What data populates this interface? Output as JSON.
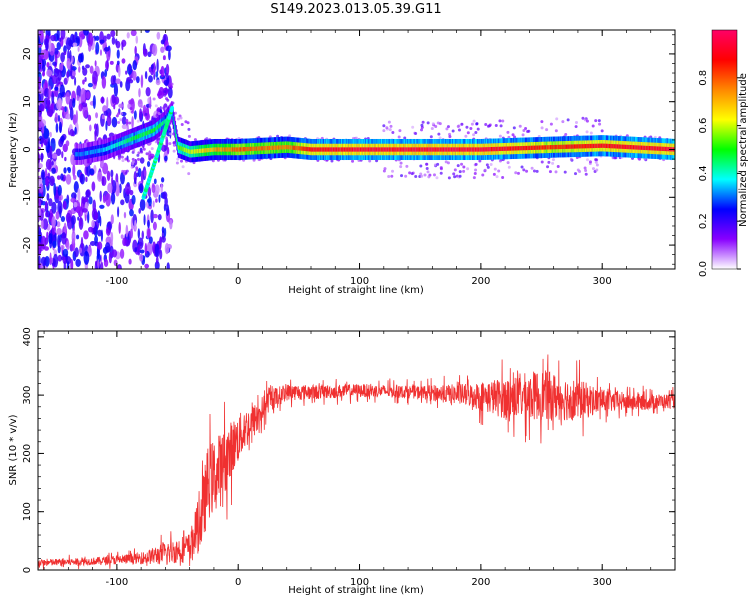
{
  "title": "S149.2023.013.05.39.G11",
  "chart_data": [
    {
      "type": "heatmap",
      "xlabel": "Height of straight line (km)",
      "ylabel": "Frequency (Hz)",
      "xlim": [
        -165,
        360
      ],
      "ylim": [
        -25,
        25
      ],
      "xticks": [
        -100,
        0,
        100,
        200,
        300
      ],
      "yticks": [
        -20,
        -10,
        0,
        10,
        20
      ],
      "grid": false,
      "colorbar": {
        "label": "Normalized spectral amplitude",
        "range": [
          0,
          1
        ],
        "ticks": [
          "0.0",
          "0.2",
          "0.4",
          "0.6",
          "0.8"
        ],
        "colors": [
          "#ffffff",
          "#8800ff",
          "#0000ff",
          "#00ffff",
          "#00ff00",
          "#ffff00",
          "#ff8800",
          "#ff0000",
          "#ff0066"
        ]
      },
      "ridge": {
        "x": [
          -130,
          -110,
          -90,
          -70,
          -60,
          -55,
          -50,
          -40,
          -20,
          0,
          40,
          60,
          100,
          200,
          260,
          300,
          360
        ],
        "y": [
          -1,
          0,
          2,
          4,
          6,
          8,
          0.5,
          -0.5,
          0,
          0,
          0.5,
          0,
          0,
          0,
          0.5,
          0.8,
          0
        ],
        "amplitude": [
          0.3,
          0.35,
          0.45,
          0.5,
          0.4,
          0.35,
          0.55,
          0.6,
          0.7,
          0.8,
          0.75,
          0.9,
          0.95,
          0.95,
          0.85,
          0.9,
          0.95
        ]
      }
    },
    {
      "type": "line",
      "xlabel": "Height of straight line (km)",
      "ylabel": "SNR (10 * v/v)",
      "xlim": [
        -165,
        360
      ],
      "ylim": [
        0,
        410
      ],
      "xticks": [
        -100,
        0,
        100,
        200,
        300
      ],
      "yticks": [
        0,
        100,
        200,
        300,
        400
      ],
      "grid": false,
      "color": "#f03030",
      "series": [
        {
          "x": [
            -165,
            -120,
            -80,
            -60,
            -40,
            -30,
            -25,
            -15,
            -5,
            5,
            15,
            25,
            40,
            60,
            100,
            150,
            190,
            220,
            250,
            280,
            300,
            330,
            360
          ],
          "mean": [
            12,
            15,
            20,
            28,
            40,
            90,
            150,
            170,
            210,
            240,
            260,
            290,
            305,
            305,
            308,
            305,
            300,
            295,
            300,
            292,
            290,
            288,
            290
          ],
          "spread": [
            8,
            8,
            12,
            25,
            30,
            70,
            80,
            80,
            60,
            45,
            35,
            25,
            18,
            16,
            14,
            14,
            25,
            45,
            55,
            45,
            25,
            18,
            15
          ]
        }
      ]
    }
  ]
}
